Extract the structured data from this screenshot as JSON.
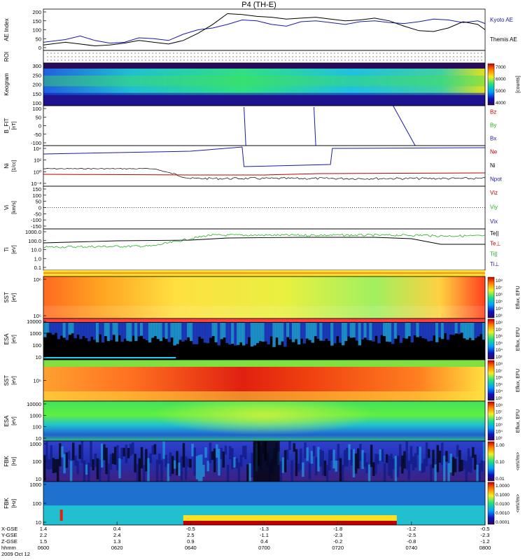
{
  "title": "P4 (TH-E)",
  "colors": {
    "blue": "#1a1aa6",
    "red": "#c00000",
    "green": "#20b020",
    "black": "#000000"
  },
  "chart_data": {
    "type": "multi-panel time series and spectrograms",
    "x_tick_labels": [
      "0600",
      "0620",
      "0640",
      "0700",
      "0720",
      "0740",
      "0800"
    ],
    "ephemeris": {
      "labels": [
        "X-GSE",
        "Y-GSE",
        "Z-GSE",
        "hhmm",
        "2009 Oct 12"
      ],
      "x_gse": [
        "1.4",
        "0.4",
        "-0.5",
        "-1.3",
        "-1.8",
        "-1.2",
        "-0.5"
      ],
      "y_gse": [
        "2.2",
        "2.4",
        "2.5",
        "-1.1",
        "-2.3",
        "-2.5",
        "-2.3"
      ],
      "z_gse": [
        "1.5",
        "1.3",
        "0.9",
        "0.4",
        "-0.2",
        "-0.8",
        "-1.2"
      ]
    },
    "panels": [
      {
        "id": "ae",
        "ylabel": "AE Index",
        "yticks": [
          "200",
          "150",
          "100",
          "50",
          "0"
        ],
        "ylim": [
          0,
          200
        ],
        "legend": [
          "Kyoto AE",
          "Themis AE"
        ],
        "series": [
          {
            "name": "Kyoto AE",
            "color": "blue",
            "x": [
              0,
              6,
              10,
              14,
              18,
              22,
              26,
              30,
              34,
              38,
              42,
              46,
              50,
              54,
              58,
              62,
              66,
              70,
              74,
              78,
              82,
              86,
              90,
              94,
              98,
              102,
              106,
              110,
              114,
              118,
              120
            ],
            "y": [
              30,
              45,
              65,
              40,
              25,
              30,
              55,
              50,
              40,
              75,
              100,
              110,
              130,
              155,
              150,
              130,
              120,
              145,
              150,
              140,
              130,
              145,
              150,
              140,
              135,
              145,
              160,
              155,
              140,
              150,
              135
            ]
          },
          {
            "name": "Themis AE",
            "color": "black",
            "x": [
              0,
              6,
              10,
              14,
              18,
              22,
              26,
              30,
              34,
              38,
              42,
              46,
              50,
              54,
              58,
              62,
              66,
              70,
              74,
              78,
              82,
              86,
              90,
              94,
              98,
              102,
              106,
              110,
              114,
              118,
              120
            ],
            "y": [
              15,
              30,
              20,
              10,
              15,
              25,
              40,
              30,
              20,
              40,
              80,
              130,
              190,
              185,
              175,
              170,
              160,
              165,
              170,
              160,
              150,
              155,
              165,
              150,
              120,
              95,
              90,
              110,
              145,
              130,
              100
            ]
          }
        ]
      },
      {
        "id": "roi",
        "ylabel": "ROI"
      },
      {
        "id": "keogram",
        "ylabel": "Keogram",
        "yticks": [
          "300",
          "250",
          "200",
          "150",
          "100"
        ],
        "colorbar": {
          "ticks": [
            "7000",
            "6000",
            "5000",
            "4000"
          ],
          "unit": "[counts]"
        }
      },
      {
        "id": "bfit",
        "ylabel": "B_FIT",
        "unit": "[nT]",
        "yticks": [
          "100",
          "50",
          "0",
          "-50",
          "-100"
        ],
        "ylim": [
          -120,
          120
        ],
        "legend": [
          "Bz",
          "By",
          "Bx"
        ]
      },
      {
        "id": "ni",
        "ylabel": "Ni",
        "unit": "[1/cc]",
        "yticks": [
          "10⁴",
          "10²",
          "10⁰",
          "10⁻²"
        ],
        "legend": [
          "Ne",
          "Ni",
          "Npot"
        ]
      },
      {
        "id": "vi",
        "ylabel": "Vi",
        "unit": "[km/s]",
        "yticks": [
          "150",
          "100",
          "50",
          "0",
          "-50",
          "-100",
          "-150"
        ],
        "ylim": [
          -190,
          190
        ],
        "legend": [
          "Viz",
          "Viy",
          "Vix"
        ]
      },
      {
        "id": "ti",
        "ylabel": "Ti",
        "unit": "[eV]",
        "yticks": [
          "1000.0",
          "100.0",
          "10.0",
          "1.0",
          "0.1"
        ],
        "legend": [
          "Te||",
          "Te⊥",
          "Ti||",
          "Ti⊥"
        ]
      },
      {
        "id": "sst1",
        "ylabel": "SST",
        "unit": "[eV]",
        "yticks": [
          "10⁶",
          "10⁵"
        ],
        "colorbar": {
          "ticks": [
            "10⁸",
            "10⁷",
            "10⁶",
            "10⁵",
            "10⁴",
            "10³"
          ],
          "unit": "Eflux, EFU"
        }
      },
      {
        "id": "esa1",
        "ylabel": "ESA",
        "unit": "[eV]",
        "yticks": [
          "10000",
          "1000",
          "100",
          "10"
        ],
        "colorbar": {
          "ticks": [
            "10⁸",
            "10⁷",
            "10⁶",
            "10⁵",
            "10⁴",
            "10³"
          ],
          "unit": "Eflux, EFU"
        }
      },
      {
        "id": "sst2",
        "ylabel": "SST",
        "unit": "[eV]",
        "yticks": [
          "10⁵"
        ],
        "colorbar": {
          "ticks": [
            "10⁸",
            "10⁷",
            "10⁶",
            "10⁵",
            "10⁴",
            "10³"
          ],
          "unit": "Eflux, EFU"
        }
      },
      {
        "id": "esa2",
        "ylabel": "ESA",
        "unit": "[eV]",
        "yticks": [
          "10000",
          "1000",
          "100",
          "10"
        ],
        "colorbar": {
          "ticks": [
            "10⁸",
            "10⁷",
            "10⁶",
            "10⁵",
            "10⁴",
            "10³"
          ],
          "unit": "Eflux, EFU"
        }
      },
      {
        "id": "fbk1",
        "ylabel": "FBK",
        "unit": "[Hz]",
        "yticks": [
          "1000",
          "100",
          "10"
        ],
        "colorbar": {
          "ticks": [
            "1.00",
            "0.10",
            "0.01"
          ],
          "unit": "<mV/m>"
        }
      },
      {
        "id": "fbk2",
        "ylabel": "FBK",
        "unit": "[Hz]",
        "yticks": [
          "1000",
          "100",
          "10"
        ],
        "colorbar": {
          "ticks": [
            "1.0000",
            "0.1000",
            "0.0100",
            "0.0010",
            "0.0001"
          ],
          "unit": "<mV/m>"
        }
      }
    ]
  }
}
